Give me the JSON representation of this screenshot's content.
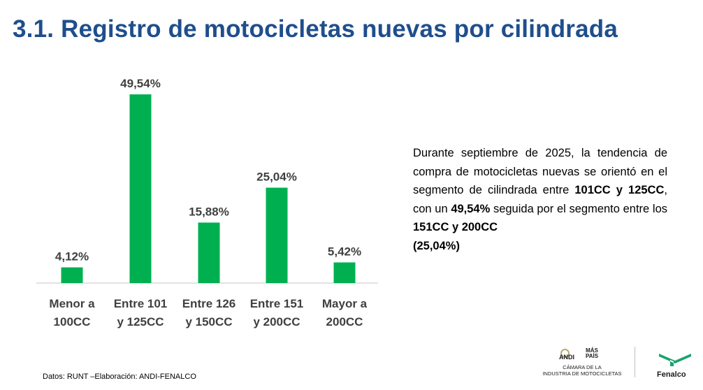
{
  "page": {
    "title": "3.1. Registro de motocicletas nuevas por cilindrada"
  },
  "chart_data": {
    "type": "bar",
    "title": "",
    "xlabel": "",
    "ylabel": "",
    "categories": [
      [
        "Menor a",
        "100CC"
      ],
      [
        "Entre 101",
        "y 125CC"
      ],
      [
        "Entre 126",
        "y 150CC"
      ],
      [
        "Entre 151",
        "y 200CC"
      ],
      [
        "Mayor a",
        "200CC"
      ]
    ],
    "values": [
      4.12,
      49.54,
      15.88,
      25.04,
      5.42
    ],
    "data_labels": [
      "4,12%",
      "49,54%",
      "15,88%",
      "25,04%",
      "5,42%"
    ],
    "ylim": [
      0,
      50
    ],
    "grid": false,
    "legend": "none",
    "colors": {
      "bar": "#00b050",
      "axis": "#d9d9d9",
      "label": "#404040"
    }
  },
  "summary": {
    "part1": "Durante septiembre de 2025, la tendencia de compra de motocicletas nuevas se orientó en el segmento de cilindrada entre ",
    "bold1": "101CC y 125CC",
    "part2": ", con un ",
    "bold2": "49,54%",
    "part3": " seguida por el segmento entre los ",
    "bold3": "151CC y 200CC",
    "bold4": "(25,04%)"
  },
  "footnote": "Datos: RUNT –Elaboración: ANDI-FENALCO",
  "logos": {
    "andi": "ANDI",
    "mas": "MÁS",
    "pais": "PAÍS",
    "camara_line1": "CÁMARA DE LA",
    "camara_line2": "INDUSTRIA DE MOTOCICLETAS",
    "fenalco": "Fenalco",
    "fenalco_color": "#1aa36e"
  },
  "colors": {
    "title": "#1f4e8c"
  }
}
